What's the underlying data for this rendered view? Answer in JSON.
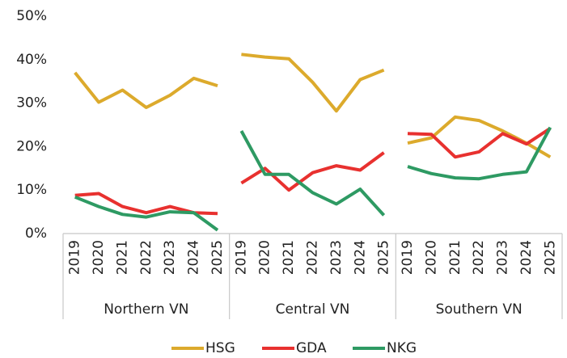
{
  "chart_data": {
    "type": "line",
    "ylim": [
      0,
      50
    ],
    "yticks": [
      {
        "value": 0,
        "label": "0%"
      },
      {
        "value": 10,
        "label": "10%"
      },
      {
        "value": 20,
        "label": "20%"
      },
      {
        "value": 30,
        "label": "30%"
      },
      {
        "value": 40,
        "label": "40%"
      },
      {
        "value": 50,
        "label": "50%"
      }
    ],
    "groups": [
      {
        "name": "Northern VN",
        "categories": [
          "2019",
          "2020",
          "2021",
          "2022",
          "2023",
          "2024",
          "2025"
        ]
      },
      {
        "name": "Central VN",
        "categories": [
          "2019",
          "2020",
          "2021",
          "2022",
          "2023",
          "2024",
          "2025"
        ]
      },
      {
        "name": "Southern VN",
        "categories": [
          "2019",
          "2020",
          "2021",
          "2022",
          "2023",
          "2024",
          "2025"
        ]
      }
    ],
    "series": [
      {
        "name": "HSG",
        "color": "#dcaa2c",
        "values": [
          [
            37,
            30.2,
            33,
            29,
            31.8,
            35.7,
            34
          ],
          [
            41.2,
            40.6,
            40.2,
            34.8,
            28.2,
            35.4,
            37.6
          ],
          [
            20.8,
            22,
            26.8,
            26,
            23.6,
            20.8,
            17.6
          ]
        ]
      },
      {
        "name": "GDA",
        "color": "#e8312f",
        "values": [
          [
            8.8,
            9.2,
            6.2,
            4.8,
            6.2,
            4.8,
            4.6
          ],
          [
            11.6,
            15,
            10,
            14,
            15.6,
            14.6,
            18.6
          ],
          [
            23,
            22.8,
            17.6,
            18.8,
            23,
            20.6,
            24.2
          ]
        ]
      },
      {
        "name": "NKG",
        "color": "#2e9a63",
        "values": [
          [
            8.4,
            6.2,
            4.4,
            3.8,
            5,
            4.8,
            0.8
          ],
          [
            23.6,
            13.6,
            13.6,
            9.4,
            6.8,
            10.2,
            4.2
          ],
          [
            15.4,
            13.8,
            12.8,
            12.6,
            13.6,
            14.2,
            24.4
          ]
        ]
      }
    ]
  }
}
